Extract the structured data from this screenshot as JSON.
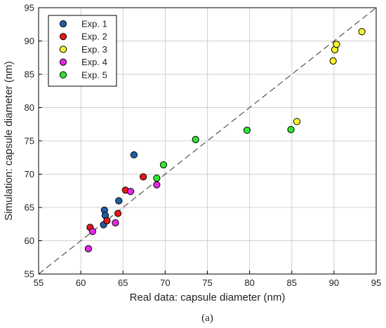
{
  "chart_data": {
    "type": "scatter",
    "xlabel": "Real data: capsule diameter (nm)",
    "ylabel": "Simulation: capsule diameter (nm)",
    "xlim": [
      55,
      95
    ],
    "ylim": [
      55,
      95
    ],
    "xticks": [
      55,
      60,
      65,
      70,
      75,
      80,
      85,
      90,
      95
    ],
    "yticks": [
      55,
      60,
      65,
      70,
      75,
      80,
      85,
      90,
      95
    ],
    "grid": true,
    "legend_position": "top-left",
    "reference_line": {
      "style": "dashed",
      "from": [
        55,
        55
      ],
      "to": [
        95,
        95
      ]
    },
    "series": [
      {
        "name": "Exp. 1",
        "color": "#1f5fa8",
        "points": [
          [
            62.8,
            64.6
          ],
          [
            62.9,
            63.8
          ],
          [
            62.7,
            62.4
          ],
          [
            64.5,
            66.0
          ],
          [
            66.3,
            72.9
          ]
        ]
      },
      {
        "name": "Exp. 2",
        "color": "#e81818",
        "points": [
          [
            61.1,
            62.0
          ],
          [
            63.1,
            63.0
          ],
          [
            64.4,
            64.1
          ],
          [
            65.3,
            67.6
          ],
          [
            67.4,
            69.6
          ]
        ]
      },
      {
        "name": "Exp. 3",
        "color": "#f5f52a",
        "points": [
          [
            85.6,
            77.9
          ],
          [
            89.9,
            87.0
          ],
          [
            90.1,
            88.7
          ],
          [
            90.3,
            89.5
          ],
          [
            93.3,
            91.4
          ]
        ]
      },
      {
        "name": "Exp. 4",
        "color": "#e826e8",
        "points": [
          [
            60.9,
            58.8
          ],
          [
            61.4,
            61.4
          ],
          [
            64.1,
            62.7
          ],
          [
            65.9,
            67.4
          ],
          [
            69.0,
            68.4
          ]
        ]
      },
      {
        "name": "Exp. 5",
        "color": "#2ee82e",
        "points": [
          [
            69.0,
            69.4
          ],
          [
            69.8,
            71.4
          ],
          [
            73.6,
            75.2
          ],
          [
            79.7,
            76.6
          ],
          [
            84.9,
            76.7
          ]
        ]
      }
    ]
  },
  "caption": "(a)"
}
